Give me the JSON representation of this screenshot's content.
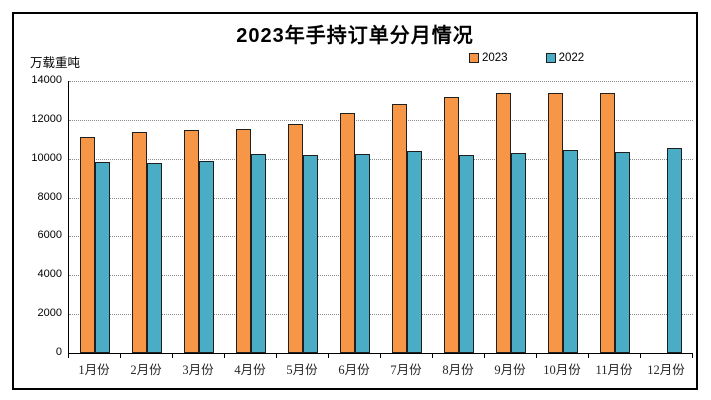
{
  "page": {
    "background": "#ffffff",
    "frame_border_color": "#000000"
  },
  "chart_data": {
    "type": "bar",
    "title": "2023年手持订单分月情况",
    "unit_label": "万载重吨",
    "categories": [
      "1月份",
      "2月份",
      "3月份",
      "4月份",
      "5月份",
      "6月份",
      "7月份",
      "8月份",
      "9月份",
      "10月份",
      "11月份",
      "12月份"
    ],
    "series": [
      {
        "name": "2023",
        "color": "#F79646",
        "values": [
          11130,
          11380,
          11460,
          11530,
          11800,
          12380,
          12810,
          13160,
          13400,
          13400,
          13400,
          null
        ]
      },
      {
        "name": "2022",
        "color": "#4BACC6",
        "values": [
          9840,
          9800,
          9900,
          10230,
          10180,
          10260,
          10380,
          10200,
          10280,
          10470,
          10370,
          10550
        ]
      }
    ],
    "ylim": [
      0,
      14000
    ],
    "ytick_step": 2000,
    "yticks": [
      "0",
      "2000",
      "4000",
      "6000",
      "8000",
      "10000",
      "12000",
      "14000"
    ],
    "grid": "horizontal-dotted",
    "gridline_color": "#8c8c8c",
    "axis_color": "#000000",
    "bar_border_color": "#1f1f1f",
    "legend_position": "top-right"
  }
}
